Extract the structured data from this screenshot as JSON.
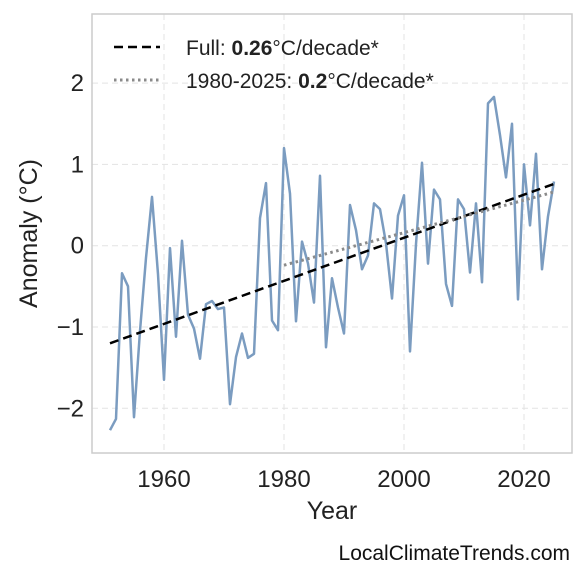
{
  "chart_data": {
    "type": "line",
    "xlabel": "Year",
    "ylabel": "Anomaly (°C)",
    "xlim": [
      1948,
      2028
    ],
    "ylim": [
      -2.55,
      2.85
    ],
    "xticks": [
      1960,
      1980,
      2000,
      2020
    ],
    "yticks": [
      -2,
      -1,
      0,
      1,
      2
    ],
    "ytick_labels": [
      "−2",
      "−1",
      "0",
      "1",
      "2"
    ],
    "grid": true,
    "legend_position": "top-left",
    "series": [
      {
        "color": "#7b9cc0",
        "x": [
          1951,
          1952,
          1953,
          1954,
          1955,
          1956,
          1957,
          1958,
          1959,
          1960,
          1961,
          1962,
          1963,
          1964,
          1965,
          1966,
          1967,
          1968,
          1969,
          1970,
          1971,
          1972,
          1973,
          1974,
          1975,
          1976,
          1977,
          1978,
          1979,
          1980,
          1981,
          1982,
          1983,
          1984,
          1985,
          1986,
          1987,
          1988,
          1989,
          1990,
          1991,
          1992,
          1993,
          1994,
          1995,
          1996,
          1997,
          1998,
          1999,
          2000,
          2001,
          2002,
          2003,
          2004,
          2005,
          2006,
          2007,
          2008,
          2009,
          2010,
          2011,
          2012,
          2013,
          2014,
          2015,
          2016,
          2017,
          2018,
          2019,
          2020,
          2021,
          2022,
          2023,
          2024,
          2025
        ],
        "y": [
          -2.27,
          -2.13,
          -0.34,
          -0.5,
          -2.11,
          -1.05,
          -0.15,
          0.6,
          -0.35,
          -1.65,
          -0.03,
          -1.12,
          0.06,
          -0.85,
          -1.02,
          -1.39,
          -0.72,
          -0.68,
          -0.78,
          -0.76,
          -1.95,
          -1.37,
          -1.08,
          -1.38,
          -1.33,
          0.34,
          0.77,
          -0.92,
          -1.04,
          1.2,
          0.64,
          -0.93,
          0.05,
          -0.22,
          -0.7,
          0.86,
          -1.25,
          -0.4,
          -0.76,
          -1.08,
          0.5,
          0.19,
          -0.29,
          -0.12,
          0.52,
          0.45,
          0.03,
          -0.65,
          0.37,
          0.62,
          -1.3,
          0.02,
          1.02,
          -0.22,
          0.69,
          0.57,
          -0.47,
          -0.74,
          0.57,
          0.45,
          -0.33,
          0.52,
          -0.45,
          1.75,
          1.83,
          1.36,
          0.84,
          1.5,
          -0.66,
          1.0,
          0.25,
          1.13,
          -0.29,
          0.36,
          0.79
        ]
      },
      {
        "color": "#000000",
        "style": "dashed",
        "x": [
          1951,
          2025
        ],
        "y": [
          -1.2,
          0.76
        ]
      },
      {
        "color": "#8a8a8a",
        "style": "dotted",
        "x": [
          1980,
          2025
        ],
        "y": [
          -0.24,
          0.66
        ]
      }
    ],
    "legend": [
      {
        "prefix": "Full: ",
        "value": "0.26",
        "suffix": "°C/decade*",
        "color": "#000000",
        "style": "dashed"
      },
      {
        "prefix": "1980-2025: ",
        "value": "0.2",
        "suffix": "°C/decade*",
        "color": "#8a8a8a",
        "style": "dotted"
      }
    ]
  },
  "watermark": "LocalClimateTrends.com",
  "frame_color": "#cccccc"
}
